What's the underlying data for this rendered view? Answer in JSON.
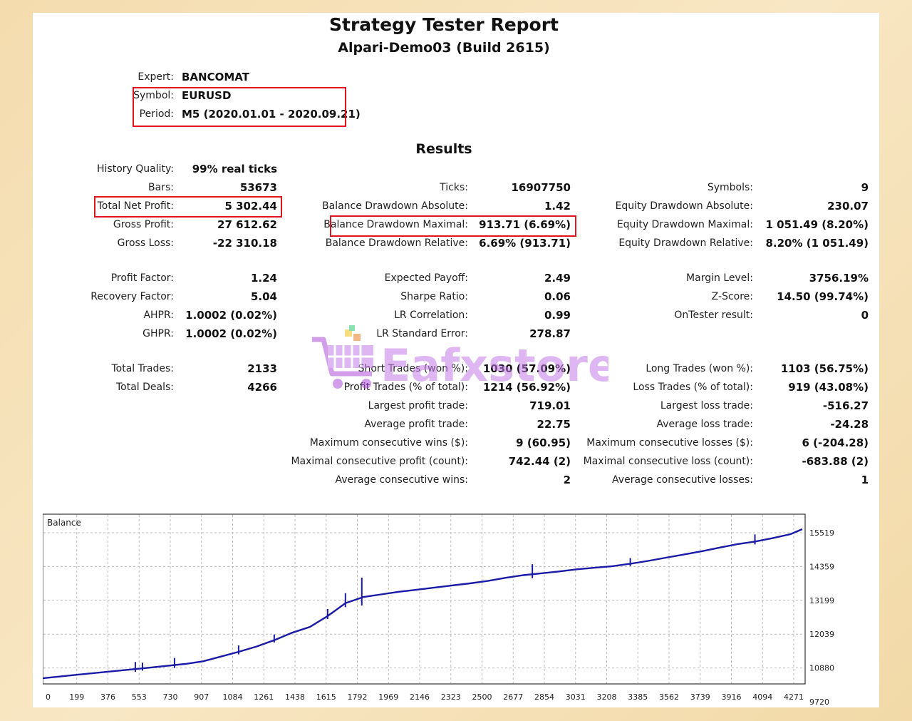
{
  "header": {
    "title": "Strategy Tester Report",
    "subtitle": "Alpari-Demo03 (Build 2615)"
  },
  "info": {
    "expert_label": "Expert:",
    "expert_value": "BANCOMAT",
    "symbol_label": "Symbol:",
    "symbol_value": "EURUSD",
    "period_label": "Period:",
    "period_value": "M5 (2020.01.01 - 2020.09.21)"
  },
  "results_heading": "Results",
  "col1": [
    {
      "label": "History Quality:",
      "value": "99% real ticks"
    },
    {
      "label": "Bars:",
      "value": "53673"
    },
    {
      "label": "Total Net Profit:",
      "value": "5 302.44"
    },
    {
      "label": "Gross Profit:",
      "value": "27 612.62"
    },
    {
      "label": "Gross Loss:",
      "value": "-22 310.18"
    },
    {
      "label": "Profit Factor:",
      "value": "1.24"
    },
    {
      "label": "Recovery Factor:",
      "value": "5.04"
    },
    {
      "label": "AHPR:",
      "value": "1.0002 (0.02%)"
    },
    {
      "label": "GHPR:",
      "value": "1.0002 (0.02%)"
    },
    {
      "label": "Total Trades:",
      "value": "2133"
    },
    {
      "label": "Total Deals:",
      "value": "4266"
    }
  ],
  "col2": [
    {
      "label": "Ticks:",
      "value": "16907750"
    },
    {
      "label": "Balance Drawdown Absolute:",
      "value": "1.42"
    },
    {
      "label": "Balance Drawdown Maximal:",
      "value": "913.71 (6.69%)"
    },
    {
      "label": "Balance Drawdown Relative:",
      "value": "6.69% (913.71)"
    },
    {
      "label": "Expected Payoff:",
      "value": "2.49"
    },
    {
      "label": "Sharpe Ratio:",
      "value": "0.06"
    },
    {
      "label": "LR Correlation:",
      "value": "0.99"
    },
    {
      "label": "LR Standard Error:",
      "value": "278.87"
    },
    {
      "label": "Short Trades (won %):",
      "value": "1030 (57.09%)"
    },
    {
      "label": "Profit Trades (% of total):",
      "value": "1214 (56.92%)"
    },
    {
      "label": "Largest profit trade:",
      "value": "719.01"
    },
    {
      "label": "Average profit trade:",
      "value": "22.75"
    },
    {
      "label": "Maximum consecutive wins ($):",
      "value": "9 (60.95)"
    },
    {
      "label": "Maximal consecutive profit (count):",
      "value": "742.44 (2)"
    },
    {
      "label": "Average consecutive wins:",
      "value": "2"
    }
  ],
  "col3": [
    {
      "label": "Symbols:",
      "value": "9"
    },
    {
      "label": "Equity Drawdown Absolute:",
      "value": "230.07"
    },
    {
      "label": "Equity Drawdown Maximal:",
      "value": "1 051.49 (8.20%)"
    },
    {
      "label": "Equity Drawdown Relative:",
      "value": "8.20% (1 051.49)"
    },
    {
      "label": "Margin Level:",
      "value": "3756.19%"
    },
    {
      "label": "Z-Score:",
      "value": "14.50 (99.74%)"
    },
    {
      "label": "OnTester result:",
      "value": "0"
    },
    {
      "label": "Long Trades (won %):",
      "value": "1103 (56.75%)"
    },
    {
      "label": "Loss Trades (% of total):",
      "value": "919 (43.08%)"
    },
    {
      "label": "Largest loss trade:",
      "value": "-516.27"
    },
    {
      "label": "Average loss trade:",
      "value": "-24.28"
    },
    {
      "label": "Maximum consecutive losses ($):",
      "value": "6 (-204.28)"
    },
    {
      "label": "Maximal consecutive loss (count):",
      "value": "-683.88 (2)"
    },
    {
      "label": "Average consecutive losses:",
      "value": "1"
    }
  ],
  "watermark": "Eafxstore",
  "colors": {
    "line": "#1a1aa6",
    "highlight": "#e0141e"
  },
  "chart_data": {
    "type": "line",
    "title": "Balance",
    "x_ticks": [
      "0",
      "199",
      "376",
      "553",
      "730",
      "907",
      "1084",
      "1261",
      "1438",
      "1615",
      "1792",
      "1969",
      "2146",
      "2323",
      "2500",
      "2677",
      "2854",
      "3031",
      "3208",
      "3385",
      "3562",
      "3739",
      "3916",
      "4094",
      "4271"
    ],
    "y_ticks": [
      "15519",
      "14359",
      "13199",
      "12039",
      "10880",
      "9720"
    ],
    "ylim": [
      9720,
      15519
    ],
    "xlim": [
      0,
      4266
    ],
    "grid": true,
    "series": [
      {
        "x": [
          0,
          200,
          400,
          600,
          800,
          900,
          1000,
          1100,
          1200,
          1300,
          1400,
          1500,
          1600,
          1700,
          1800,
          1900,
          2000,
          2100,
          2200,
          2300,
          2400,
          2500,
          2600,
          2700,
          2800,
          2900,
          3000,
          3100,
          3200,
          3300,
          3400,
          3500,
          3600,
          3700,
          3800,
          3900,
          4000,
          4100,
          4200,
          4266
        ],
        "y": [
          9880,
          10020,
          10150,
          10280,
          10420,
          10520,
          10700,
          10880,
          11080,
          11320,
          11600,
          11820,
          12230,
          12720,
          12950,
          13050,
          13150,
          13230,
          13310,
          13390,
          13470,
          13560,
          13680,
          13780,
          13850,
          13920,
          14000,
          14060,
          14120,
          14210,
          14320,
          14440,
          14560,
          14680,
          14820,
          14950,
          15050,
          15180,
          15330,
          15519
        ]
      }
    ]
  }
}
